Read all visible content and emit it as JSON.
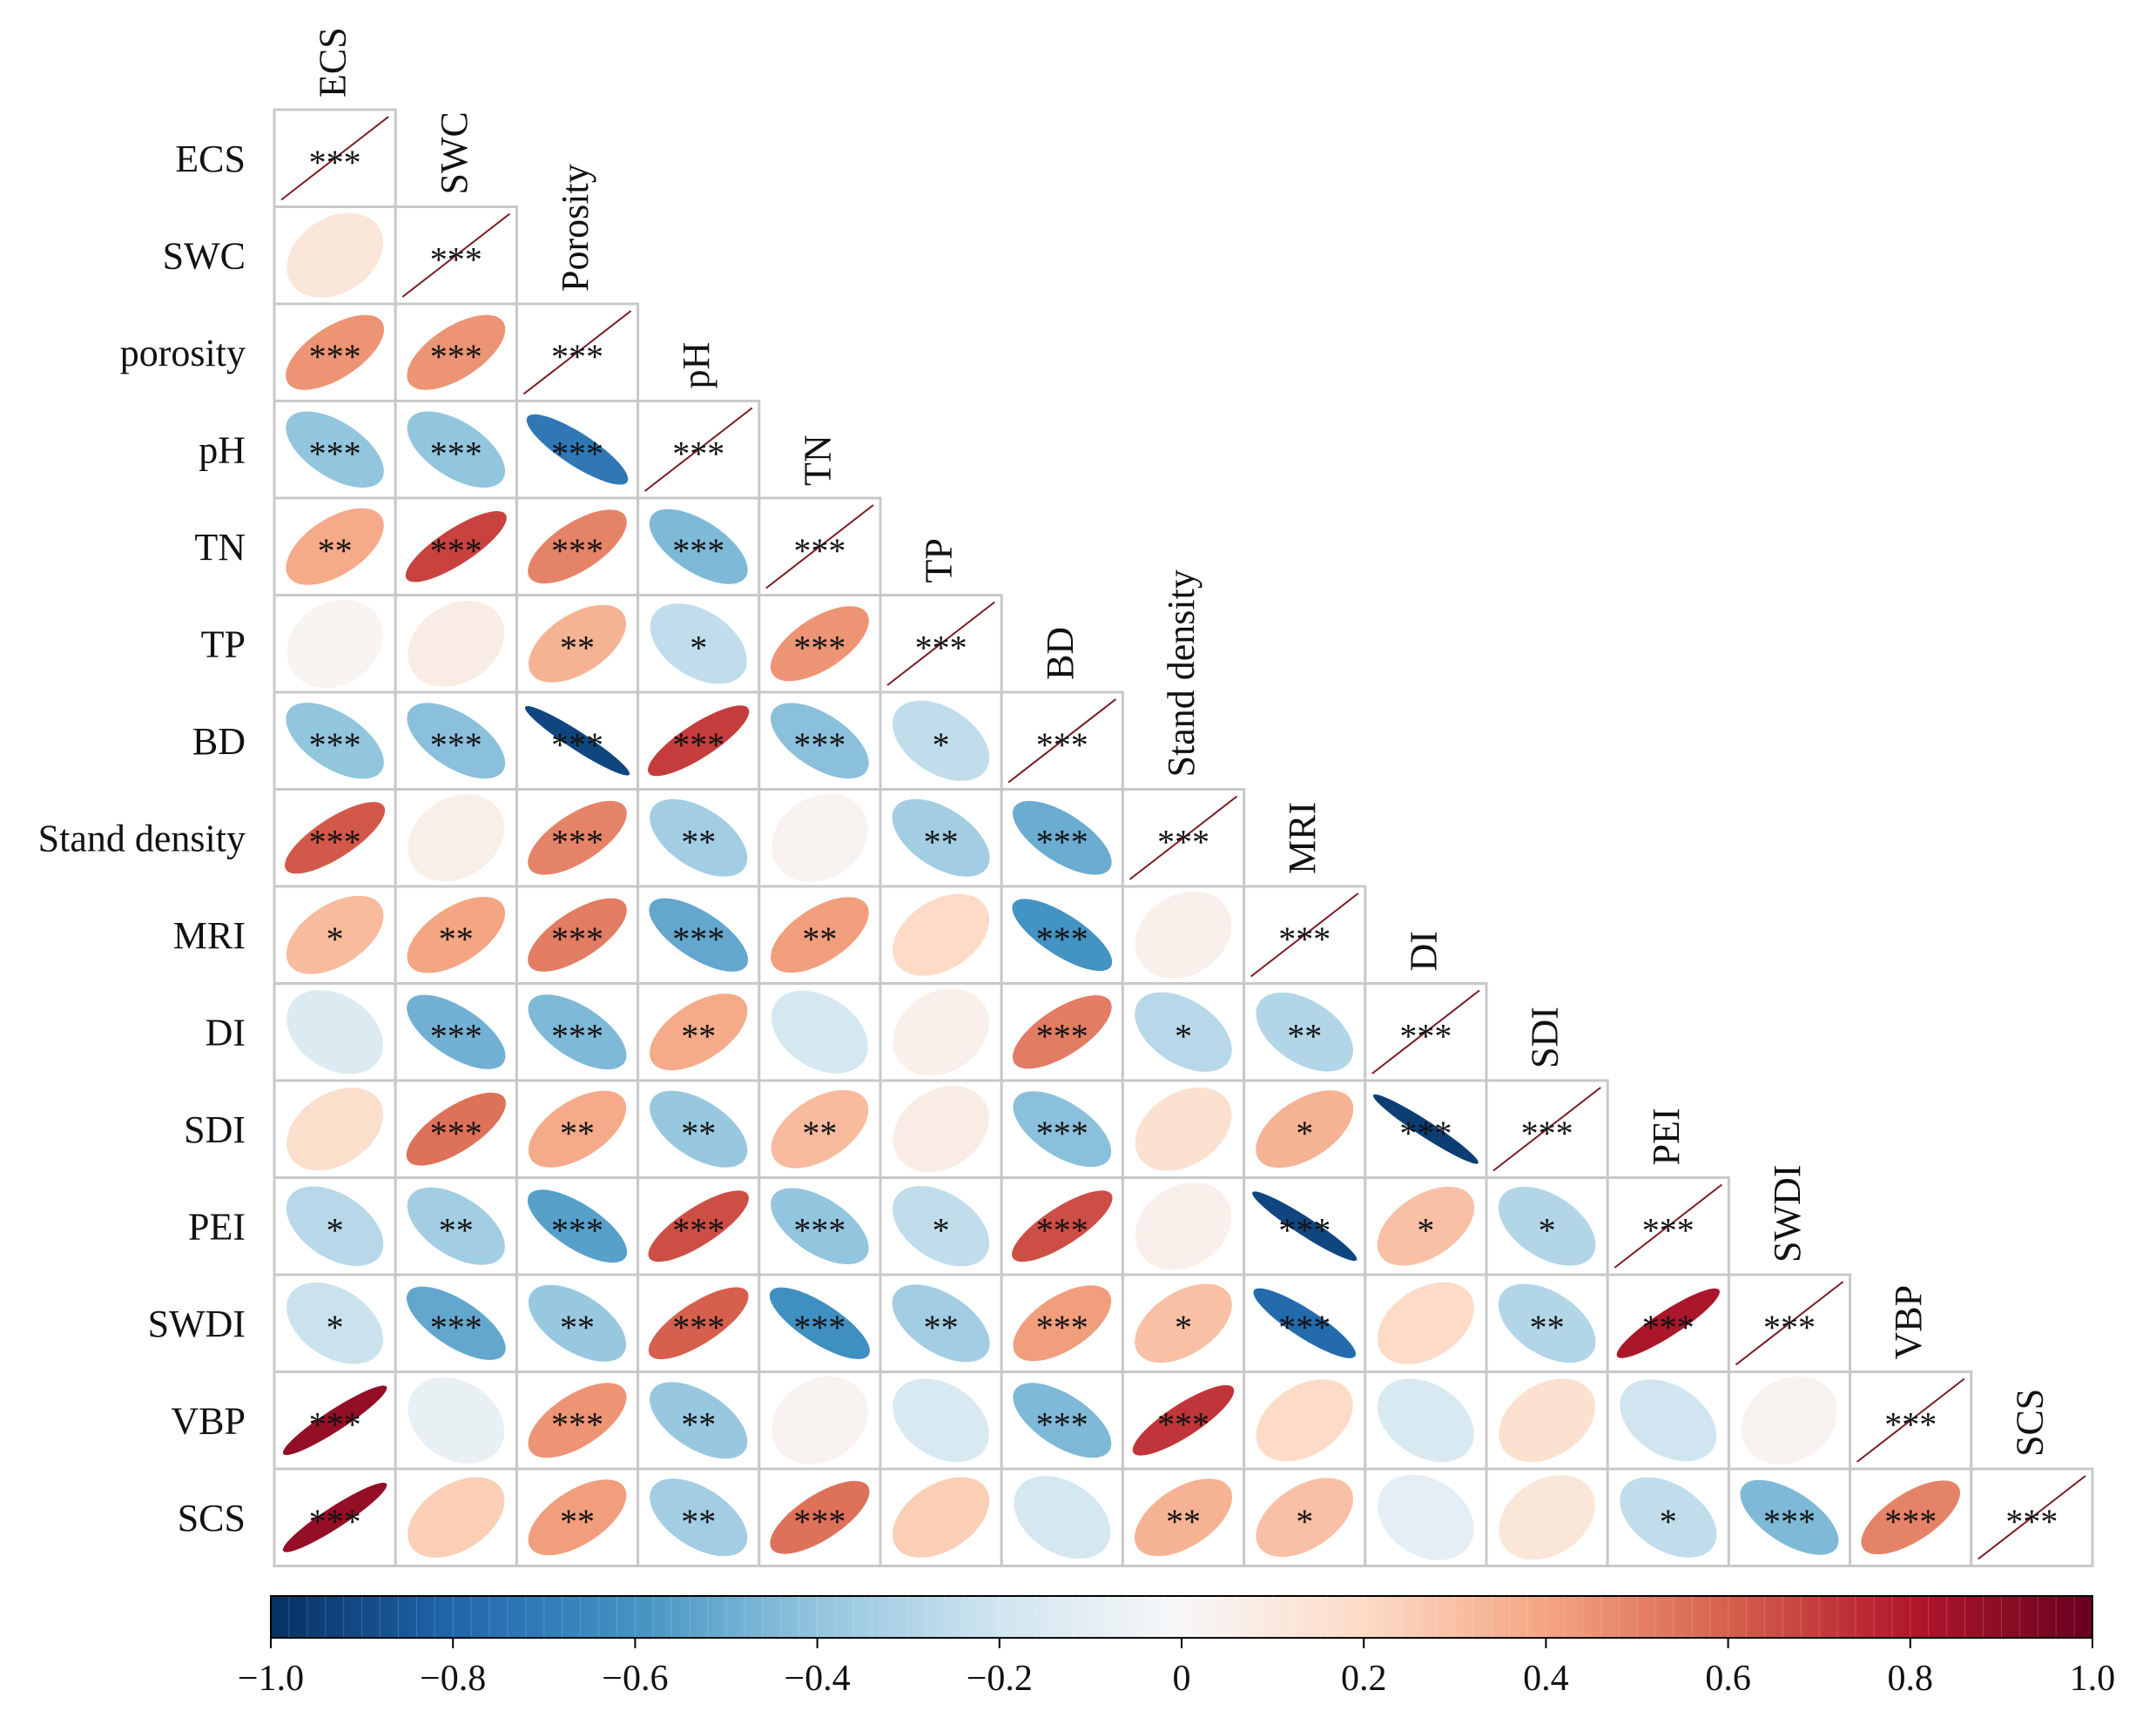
{
  "chart_data": {
    "type": "heatmap",
    "subtype": "lower-triangular correlation ellipse matrix",
    "row_labels": [
      "ECS",
      "SWC",
      "porosity",
      "pH",
      "TN",
      "TP",
      "BD",
      "Stand density",
      "MRI",
      "DI",
      "SDI",
      "PEI",
      "SWDI",
      "VBP",
      "SCS"
    ],
    "column_labels": [
      "ECS",
      "SWC",
      "Porosity",
      "pH",
      "TN",
      "TP",
      "BD",
      "Stand density",
      "MRI",
      "DI",
      "SDI",
      "PEI",
      "SWDI",
      "VBP",
      "SCS"
    ],
    "values": [
      [
        1.0
      ],
      [
        0.12,
        1.0
      ],
      [
        0.45,
        0.45,
        1.0
      ],
      [
        -0.4,
        -0.4,
        -0.72,
        1.0
      ],
      [
        0.38,
        0.68,
        0.5,
        -0.45,
        1.0
      ],
      [
        0.02,
        0.08,
        0.35,
        -0.25,
        0.45,
        1.0
      ],
      [
        -0.4,
        -0.42,
        -0.92,
        0.7,
        -0.42,
        -0.25,
        1.0
      ],
      [
        0.62,
        0.06,
        0.5,
        -0.35,
        0.03,
        -0.35,
        -0.5,
        1.0
      ],
      [
        0.32,
        0.4,
        0.52,
        -0.52,
        0.42,
        0.2,
        -0.6,
        0.05,
        1.0
      ],
      [
        -0.14,
        -0.48,
        -0.45,
        0.38,
        -0.18,
        0.05,
        0.52,
        -0.28,
        -0.3,
        1.0
      ],
      [
        0.18,
        0.55,
        0.38,
        -0.38,
        0.32,
        0.08,
        -0.42,
        0.16,
        0.35,
        -0.95,
        1.0
      ],
      [
        -0.28,
        -0.35,
        -0.55,
        0.65,
        -0.4,
        -0.25,
        0.65,
        0.05,
        -0.92,
        0.3,
        -0.3,
        1.0
      ],
      [
        -0.22,
        -0.52,
        -0.38,
        0.6,
        -0.62,
        -0.35,
        0.42,
        0.3,
        -0.78,
        0.2,
        -0.3,
        0.82,
        1.0
      ],
      [
        0.88,
        -0.08,
        0.45,
        -0.38,
        0.03,
        -0.16,
        -0.45,
        0.72,
        0.2,
        -0.16,
        0.16,
        -0.2,
        0.03,
        1.0
      ],
      [
        0.88,
        0.25,
        0.42,
        -0.35,
        0.55,
        0.25,
        -0.18,
        0.35,
        0.3,
        -0.1,
        0.12,
        -0.25,
        -0.45,
        0.5,
        1.0
      ]
    ],
    "significance": [
      [
        "***"
      ],
      [
        "",
        "***"
      ],
      [
        "***",
        "***",
        "***"
      ],
      [
        "***",
        "***",
        "***",
        "***"
      ],
      [
        "**",
        "***",
        "***",
        "***",
        "***"
      ],
      [
        "",
        "",
        "**",
        "*",
        "***",
        "***"
      ],
      [
        "***",
        "***",
        "***",
        "***",
        "***",
        "*",
        "***"
      ],
      [
        "***",
        "",
        "***",
        "**",
        "",
        "**",
        "***",
        "***"
      ],
      [
        "*",
        "**",
        "***",
        "***",
        "**",
        "",
        "***",
        "",
        "***"
      ],
      [
        "",
        "***",
        "***",
        "**",
        "",
        "",
        "***",
        "*",
        "**",
        "***"
      ],
      [
        "",
        "***",
        "**",
        "**",
        "**",
        "",
        "***",
        "",
        "*",
        "***",
        "***"
      ],
      [
        "*",
        "**",
        "***",
        "***",
        "***",
        "*",
        "***",
        "",
        "***",
        "*",
        "*",
        "***"
      ],
      [
        "*",
        "***",
        "**",
        "***",
        "***",
        "**",
        "***",
        "*",
        "***",
        "",
        "**",
        "***",
        "***"
      ],
      [
        "***",
        "",
        "***",
        "**",
        "",
        "",
        "***",
        "***",
        "",
        "",
        "",
        "",
        "",
        "***"
      ],
      [
        "***",
        "",
        "**",
        "**",
        "***",
        "",
        "",
        "**",
        "*",
        "",
        "",
        "*",
        "***",
        "***",
        "***"
      ]
    ],
    "colorbar": {
      "min": -1.0,
      "max": 1.0,
      "ticks": [
        -1.0,
        -0.8,
        -0.6,
        -0.4,
        -0.2,
        0,
        0.2,
        0.4,
        0.6,
        0.8,
        1.0
      ],
      "tick_labels": [
        "−1.0",
        "−0.8",
        "−0.6",
        "−0.4",
        "−0.2",
        "0",
        "0.2",
        "0.4",
        "0.6",
        "0.8",
        "1.0"
      ],
      "colormap": "RdBu_r",
      "stops": [
        "#053061",
        "#2166ac",
        "#4393c3",
        "#92c5de",
        "#d1e5f0",
        "#f7f7f7",
        "#fddbc7",
        "#f4a582",
        "#d6604d",
        "#b2182b",
        "#67001f"
      ]
    },
    "colors": {
      "grid": "#c8c8c8",
      "diagonal_line": "#7a1a22",
      "text": "#111111"
    }
  }
}
